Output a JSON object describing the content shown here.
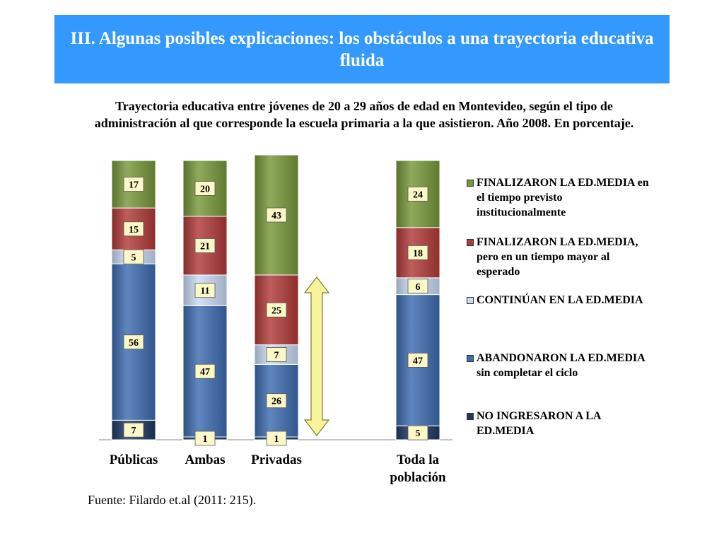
{
  "slide": {
    "title": "III. Algunas posibles explicaciones: los obstáculos a una trayectoria educativa fluida",
    "title_bg": "#3399ff",
    "source": "Fuente: Filardo et.al (2011: 215)."
  },
  "chart_data": {
    "type": "bar",
    "stacked": true,
    "title": "Trayectoria educativa entre jóvenes de 20 a 29 años de edad en Montevideo, según el tipo de administración al que corresponde la escuela primaria a la que asistieron. Año 2008. En porcentaje.",
    "categories": [
      "Públicas",
      "Ambas",
      "Privadas",
      "Toda la población"
    ],
    "ylim": [
      0,
      100
    ],
    "series": [
      {
        "name": "NO INGRESARON A LA ED.MEDIA",
        "color": "#1f3864",
        "values": [
          7,
          1,
          1,
          5
        ]
      },
      {
        "name": "ABANDONARON LA ED.MEDIA sin completar el ciclo",
        "color": "#3d6cb0",
        "values": [
          56,
          47,
          26,
          47
        ]
      },
      {
        "name": "CONTINÚAN EN LA ED.MEDIA",
        "color": "#c9daf4",
        "values": [
          5,
          11,
          7,
          6
        ]
      },
      {
        "name": "FINALIZARON LA ED.MEDIA, pero en un tiempo mayor al esperado",
        "color": "#b03a38",
        "values": [
          15,
          21,
          25,
          18
        ]
      },
      {
        "name": "FINALIZARON LA ED.MEDIA en el tiempo previsto institucionalmente",
        "color": "#77973a",
        "values": [
          17,
          20,
          43,
          24
        ]
      }
    ],
    "label_bg": "#fbf7c6",
    "arrow_color": "#f6f39a",
    "legend_position": "right"
  }
}
